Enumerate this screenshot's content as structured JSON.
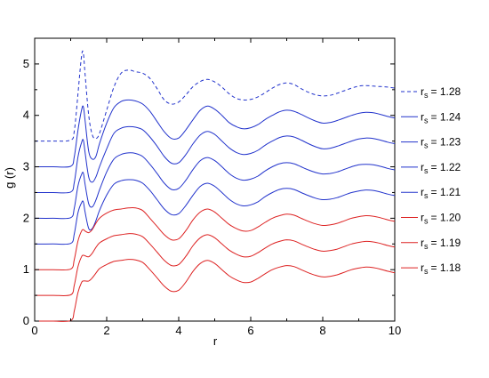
{
  "chart_data": {
    "type": "line",
    "xlabel": "r",
    "ylabel": "g (r)",
    "xlim": [
      0,
      10
    ],
    "ylim": [
      0,
      5.5
    ],
    "xticks": [
      0,
      2,
      4,
      6,
      8,
      10
    ],
    "yticks": [
      0,
      1,
      2,
      3,
      4,
      5
    ],
    "grid": false,
    "legend_position": "right",
    "legend_prefix": "r",
    "legend_subscript": "s",
    "colors": {
      "blue": "#2233cc",
      "red": "#dd2222"
    },
    "x": [
      0.0,
      0.5,
      1.0,
      1.1,
      1.2,
      1.3,
      1.35,
      1.4,
      1.5,
      1.6,
      1.7,
      1.8,
      2.0,
      2.2,
      2.4,
      2.6,
      2.8,
      3.0,
      3.2,
      3.4,
      3.6,
      3.8,
      4.0,
      4.2,
      4.4,
      4.6,
      4.8,
      5.0,
      5.2,
      5.4,
      5.6,
      5.8,
      6.0,
      6.2,
      6.4,
      6.6,
      6.8,
      7.0,
      7.2,
      7.4,
      7.6,
      7.8,
      8.0,
      8.2,
      8.4,
      8.6,
      8.8,
      9.0,
      9.2,
      9.4,
      9.6,
      9.8,
      10.0
    ],
    "series": [
      {
        "name": "= 1.28",
        "color": "#2233cc",
        "dashed": true,
        "values": [
          3.5,
          3.5,
          3.52,
          3.7,
          4.4,
          5.15,
          5.21,
          4.8,
          4.0,
          3.62,
          3.55,
          3.65,
          4.1,
          4.55,
          4.82,
          4.88,
          4.85,
          4.82,
          4.72,
          4.52,
          4.3,
          4.22,
          4.26,
          4.4,
          4.56,
          4.66,
          4.7,
          4.65,
          4.55,
          4.42,
          4.33,
          4.3,
          4.31,
          4.36,
          4.44,
          4.53,
          4.6,
          4.63,
          4.6,
          4.52,
          4.45,
          4.4,
          4.38,
          4.39,
          4.43,
          4.48,
          4.53,
          4.57,
          4.58,
          4.57,
          4.56,
          4.55,
          4.53
        ]
      },
      {
        "name": "= 1.24",
        "color": "#2233cc",
        "dashed": false,
        "values": [
          3.0,
          3.0,
          3.01,
          3.2,
          3.7,
          4.1,
          4.17,
          3.9,
          3.3,
          3.15,
          3.2,
          3.45,
          3.85,
          4.15,
          4.27,
          4.3,
          4.28,
          4.22,
          4.08,
          3.88,
          3.68,
          3.55,
          3.56,
          3.72,
          3.92,
          4.1,
          4.18,
          4.12,
          4.0,
          3.86,
          3.78,
          3.74,
          3.76,
          3.82,
          3.92,
          4.0,
          4.07,
          4.1,
          4.08,
          4.02,
          3.95,
          3.89,
          3.85,
          3.86,
          3.9,
          3.95,
          4.0,
          4.04,
          4.06,
          4.05,
          4.02,
          3.98,
          3.95
        ]
      },
      {
        "name": "= 1.23",
        "color": "#2233cc",
        "dashed": false,
        "values": [
          2.5,
          2.5,
          2.51,
          2.7,
          3.18,
          3.47,
          3.52,
          3.28,
          2.8,
          2.7,
          2.8,
          3.0,
          3.35,
          3.65,
          3.75,
          3.78,
          3.77,
          3.72,
          3.58,
          3.4,
          3.2,
          3.07,
          3.08,
          3.24,
          3.45,
          3.62,
          3.69,
          3.63,
          3.5,
          3.37,
          3.28,
          3.24,
          3.26,
          3.32,
          3.42,
          3.5,
          3.57,
          3.6,
          3.58,
          3.52,
          3.45,
          3.39,
          3.35,
          3.36,
          3.4,
          3.45,
          3.5,
          3.54,
          3.56,
          3.55,
          3.52,
          3.48,
          3.45
        ]
      },
      {
        "name": "= 1.22",
        "color": "#2233cc",
        "dashed": false,
        "values": [
          2.0,
          2.0,
          2.01,
          2.2,
          2.62,
          2.85,
          2.88,
          2.66,
          2.28,
          2.22,
          2.35,
          2.55,
          2.9,
          3.15,
          3.24,
          3.27,
          3.26,
          3.2,
          3.05,
          2.87,
          2.68,
          2.56,
          2.58,
          2.74,
          2.95,
          3.12,
          3.18,
          3.12,
          3.0,
          2.87,
          2.78,
          2.74,
          2.76,
          2.82,
          2.92,
          3.0,
          3.06,
          3.08,
          3.06,
          3.0,
          2.94,
          2.89,
          2.86,
          2.87,
          2.9,
          2.95,
          3.0,
          3.04,
          3.05,
          3.04,
          3.01,
          2.97,
          2.94
        ]
      },
      {
        "name": "= 1.21",
        "color": "#2233cc",
        "dashed": false,
        "values": [
          1.5,
          1.5,
          1.51,
          1.7,
          2.1,
          2.3,
          2.32,
          2.12,
          1.8,
          1.8,
          1.95,
          2.15,
          2.45,
          2.66,
          2.73,
          2.75,
          2.74,
          2.68,
          2.54,
          2.36,
          2.18,
          2.07,
          2.09,
          2.25,
          2.45,
          2.62,
          2.68,
          2.62,
          2.5,
          2.37,
          2.28,
          2.24,
          2.26,
          2.32,
          2.42,
          2.5,
          2.56,
          2.58,
          2.56,
          2.5,
          2.44,
          2.39,
          2.36,
          2.37,
          2.4,
          2.45,
          2.5,
          2.53,
          2.55,
          2.54,
          2.51,
          2.47,
          2.44
        ]
      },
      {
        "name": "= 1.20",
        "color": "#dd2222",
        "dashed": false,
        "values": [
          1.0,
          1.0,
          1.01,
          1.2,
          1.55,
          1.75,
          1.78,
          1.75,
          1.72,
          1.78,
          1.9,
          2.0,
          2.1,
          2.16,
          2.18,
          2.2,
          2.2,
          2.15,
          2.0,
          1.84,
          1.68,
          1.58,
          1.6,
          1.76,
          1.97,
          2.12,
          2.18,
          2.12,
          2.0,
          1.88,
          1.8,
          1.75,
          1.76,
          1.83,
          1.92,
          2.0,
          2.05,
          2.08,
          2.06,
          2.0,
          1.94,
          1.89,
          1.86,
          1.87,
          1.9,
          1.95,
          2.0,
          2.03,
          2.05,
          2.04,
          2.01,
          1.97,
          1.94
        ]
      },
      {
        "name": "= 1.19",
        "color": "#dd2222",
        "dashed": false,
        "values": [
          0.5,
          0.5,
          0.51,
          0.7,
          1.05,
          1.25,
          1.28,
          1.27,
          1.25,
          1.32,
          1.43,
          1.52,
          1.6,
          1.66,
          1.68,
          1.7,
          1.69,
          1.64,
          1.5,
          1.34,
          1.18,
          1.08,
          1.1,
          1.26,
          1.47,
          1.62,
          1.68,
          1.62,
          1.5,
          1.38,
          1.3,
          1.25,
          1.26,
          1.33,
          1.42,
          1.5,
          1.55,
          1.58,
          1.56,
          1.5,
          1.44,
          1.39,
          1.36,
          1.37,
          1.4,
          1.45,
          1.5,
          1.53,
          1.55,
          1.54,
          1.51,
          1.47,
          1.44
        ]
      },
      {
        "name": "= 1.18",
        "color": "#dd2222",
        "dashed": false,
        "values": [
          0.0,
          0.0,
          0.01,
          0.2,
          0.55,
          0.75,
          0.78,
          0.78,
          0.78,
          0.84,
          0.93,
          1.02,
          1.1,
          1.16,
          1.18,
          1.2,
          1.19,
          1.14,
          1.0,
          0.84,
          0.68,
          0.58,
          0.6,
          0.76,
          0.97,
          1.12,
          1.18,
          1.12,
          1.0,
          0.88,
          0.8,
          0.75,
          0.76,
          0.83,
          0.92,
          1.0,
          1.05,
          1.08,
          1.06,
          1.0,
          0.94,
          0.89,
          0.86,
          0.87,
          0.9,
          0.95,
          1.0,
          1.03,
          1.05,
          1.04,
          1.01,
          0.97,
          0.94
        ]
      }
    ]
  }
}
